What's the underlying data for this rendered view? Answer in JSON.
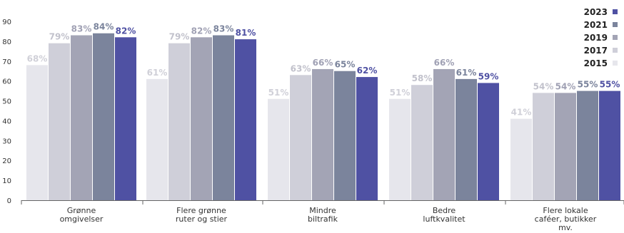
{
  "chart_data": {
    "type": "bar",
    "categories": [
      [
        "Grønne",
        "omgivelser"
      ],
      [
        "Flere grønne",
        "ruter og stier"
      ],
      [
        "Mindre",
        "biltrafik"
      ],
      [
        "Bedre",
        "luftkvalitet"
      ],
      [
        "Flere lokale",
        "caféer, butikker",
        "mv."
      ]
    ],
    "series": [
      {
        "name": "2015",
        "color": "#e6e6ec",
        "label_color": "#d0d0d8",
        "values": [
          68,
          61,
          51,
          51,
          41
        ]
      },
      {
        "name": "2017",
        "color": "#cfcfd9",
        "label_color": "#c2c2cc",
        "values": [
          79,
          79,
          63,
          58,
          54
        ]
      },
      {
        "name": "2019",
        "color": "#a3a4b5",
        "label_color": "#a0a1b4",
        "values": [
          83,
          82,
          66,
          66,
          54
        ]
      },
      {
        "name": "2021",
        "color": "#7b849c",
        "label_color": "#7b849c",
        "values": [
          84,
          83,
          65,
          61,
          55
        ]
      },
      {
        "name": "2023",
        "color": "#4f51a3",
        "label_color": "#4f51a3",
        "values": [
          82,
          81,
          62,
          59,
          55
        ]
      }
    ],
    "yticks": [
      "0",
      "10",
      "20",
      "30",
      "40",
      "50",
      "60",
      "70",
      "80",
      "90"
    ],
    "ylim": [
      0,
      90
    ],
    "value_suffix": "%",
    "legend_order": [
      "2023",
      "2021",
      "2019",
      "2017",
      "2015"
    ],
    "legend_position": "top-right"
  }
}
